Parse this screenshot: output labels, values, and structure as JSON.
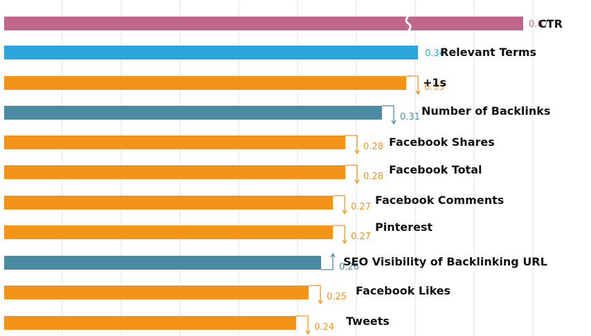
{
  "chart_data": {
    "type": "bar",
    "orientation": "horizontal",
    "grid": true,
    "xlim": [
      0,
      0.67
    ],
    "categories": [
      "CTR",
      "Relevant Terms",
      "+1s",
      "Number of Backlinks",
      "Facebook Shares",
      "Facebook Total",
      "Facebook Comments",
      "Pinterest",
      "SEO Visibility of Backlinking URL",
      "Facebook Likes",
      "Tweets"
    ],
    "values": [
      0.67,
      0.34,
      0.33,
      0.31,
      0.28,
      0.28,
      0.27,
      0.27,
      0.26,
      0.25,
      0.24
    ],
    "value_labels": [
      "0.67",
      "0.34",
      "0.33",
      "0.31",
      "0.28",
      "0.28",
      "0.27",
      "0.27",
      "0.26",
      "0.25",
      "0.24"
    ],
    "bar_colors": [
      "#c0658b",
      "#2aa6dc",
      "#f39418",
      "#4a8ba3",
      "#f39418",
      "#f39418",
      "#f39418",
      "#f39418",
      "#4a8ba3",
      "#f39418",
      "#f39418"
    ],
    "trend": [
      "broken-axis",
      "none",
      "down",
      "down",
      "down",
      "down",
      "down",
      "down",
      "up",
      "down",
      "down"
    ]
  }
}
